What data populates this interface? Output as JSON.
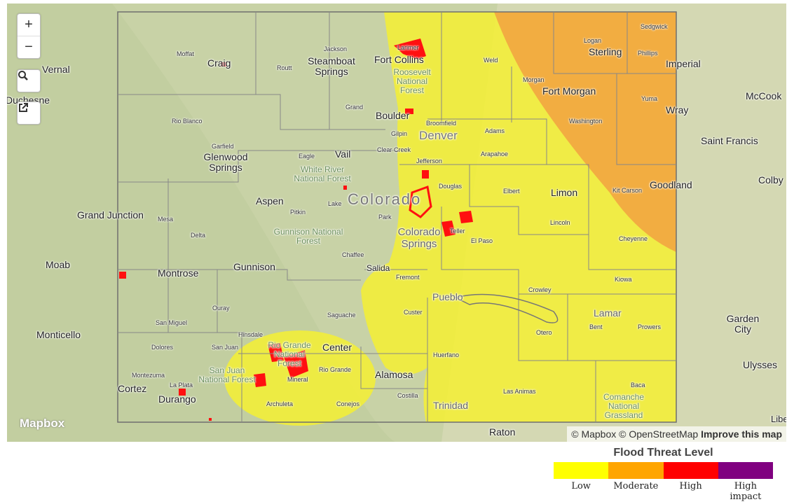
{
  "map": {
    "state_label": "Colorado",
    "controls": {
      "zoom_in": "+",
      "zoom_out": "−",
      "search_icon": "search-icon",
      "fullscreen_icon": "external-link-icon"
    },
    "logo": "Mapbox",
    "attribution": {
      "mapbox": "© Mapbox",
      "osm": "© OpenStreetMap",
      "improve": "Improve this map"
    },
    "cities": [
      "Vernal",
      "Duchesne",
      "Craig",
      "Steamboat Springs",
      "Fort Collins",
      "Sterling",
      "Imperial",
      "McCook",
      "Fort Morgan",
      "Wray",
      "Boulder",
      "Denver",
      "Glenwood Springs",
      "Vail",
      "Saint Francis",
      "Grand Junction",
      "Aspen",
      "Limon",
      "Goodland",
      "Colby",
      "Colorado Springs",
      "Moab",
      "Montrose",
      "Gunnison",
      "Salida",
      "Pueblo",
      "Lamar",
      "Garden City",
      "Monticello",
      "Center",
      "Alamosa",
      "Ulysses",
      "Cortez",
      "Durango",
      "Trinidad",
      "Raton",
      "Liberal"
    ],
    "small_labels": [
      "Moffat",
      "Jackson",
      "Routt",
      "Larimer",
      "Weld",
      "Logan",
      "Sedgwick",
      "Phillips",
      "Morgan",
      "Washington",
      "Yuma",
      "Rio Blanco",
      "Grand",
      "Gilpin",
      "Broomfield",
      "Adams",
      "Clear Creek",
      "Eagle",
      "Garfield",
      "Jefferson",
      "Arapahoe",
      "Douglas",
      "Elbert",
      "Kit Carson",
      "Mesa",
      "Pitkin",
      "Lake",
      "Park",
      "Lincoln",
      "Delta",
      "Teller",
      "El Paso",
      "Cheyenne",
      "Chaffee",
      "Fremont",
      "Kiowa",
      "Crowley",
      "Custer",
      "Ouray",
      "Saguache",
      "San Miguel",
      "Hinsdale",
      "Mineral",
      "Rio Grande",
      "Otero",
      "Bent",
      "Prowers",
      "Dolores",
      "San Juan",
      "Huerfano",
      "Montezuma",
      "La Plata",
      "Archuleta",
      "Conejos",
      "Costilla",
      "Las Animas",
      "Baca"
    ],
    "forests": [
      "Roosevelt National Forest",
      "White River National Forest",
      "Gunnison National Forest",
      "Rio Grande National Forest",
      "San Juan National Forest",
      "Comanche National Grassland"
    ]
  },
  "legend": {
    "title": "Flood Threat Level",
    "levels": [
      {
        "label": "Low",
        "color": "#ffff00"
      },
      {
        "label": "Moderate",
        "color": "#ffa500"
      },
      {
        "label": "High",
        "color": "#ff0000"
      },
      {
        "label": "High impact",
        "color": "#800080"
      }
    ]
  }
}
